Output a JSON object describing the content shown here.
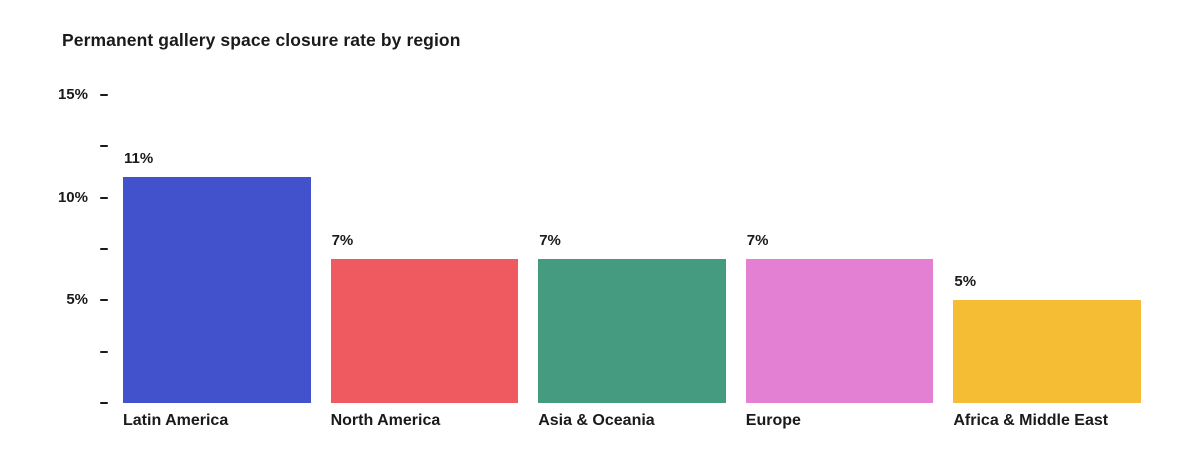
{
  "chart_data": {
    "type": "bar",
    "title": "Permanent gallery space closure rate by region",
    "categories": [
      "Latin America",
      "North America",
      "Asia & Oceania",
      "Europe",
      "Africa & Middle East"
    ],
    "values": [
      11,
      7,
      7,
      7,
      5
    ],
    "value_labels": [
      "11%",
      "7%",
      "7%",
      "7%",
      "5%"
    ],
    "bar_colors": [
      "#4252cc",
      "#ee5a5f",
      "#449b80",
      "#e380d3",
      "#f5bd33"
    ],
    "xlabel": "",
    "ylabel": "",
    "y_axis": {
      "ylim": [
        0,
        15
      ],
      "tick_values": [
        0,
        2.5,
        5,
        7.5,
        10,
        12.5,
        15
      ],
      "labeled_ticks": [
        {
          "value": 5,
          "label": "5%"
        },
        {
          "value": 10,
          "label": "10%"
        },
        {
          "value": 15,
          "label": "15%"
        }
      ]
    },
    "grid": false,
    "legend": false,
    "background_color": "#ffffff",
    "text_color": "#1a1a1a"
  }
}
